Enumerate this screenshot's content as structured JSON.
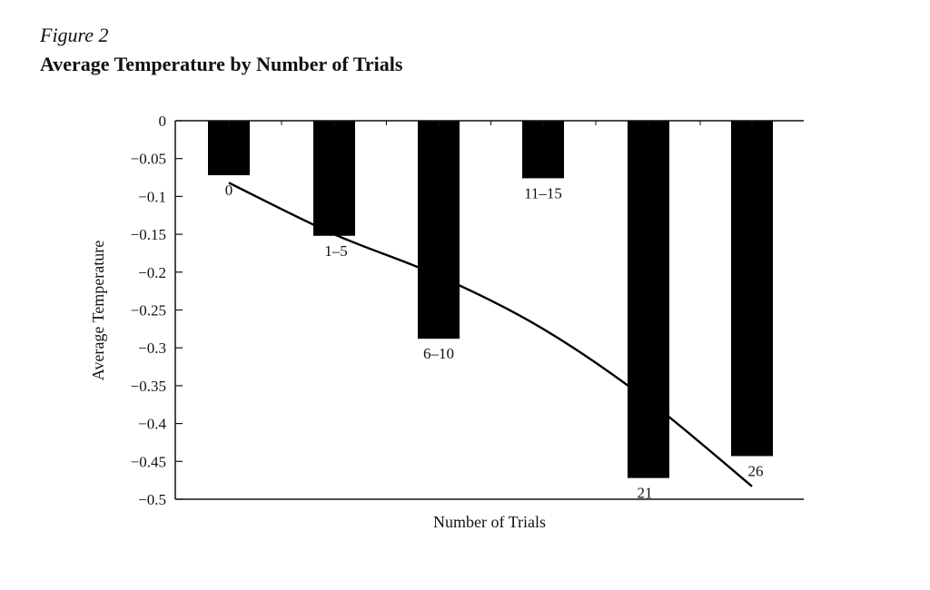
{
  "figure": {
    "label": "Figure 2",
    "title": "Average Temperature by Number of Trials"
  },
  "chart_data": {
    "type": "bar",
    "title": "Average Temperature by Number of Trials",
    "xlabel": "Number of Trials",
    "ylabel": "Average Temperature",
    "ylim": [
      -0.5,
      0
    ],
    "y_ticks": [
      0,
      -0.05,
      -0.1,
      -0.15,
      -0.2,
      -0.25,
      -0.3,
      -0.35,
      -0.4,
      -0.45,
      -0.5
    ],
    "y_tick_labels": [
      "0",
      "−0.05",
      "−0.1",
      "−0.15",
      "−0.2",
      "−0.25",
      "−0.3",
      "−0.35",
      "−0.4",
      "−0.45",
      "−0.5"
    ],
    "categories": [
      "0",
      "1–5",
      "6–10",
      "11–15",
      "21",
      "26"
    ],
    "values": [
      -0.072,
      -0.152,
      -0.288,
      -0.076,
      -0.472,
      -0.443
    ],
    "bar_color": "#000000",
    "trend_line": {
      "type": "line",
      "color": "#000000",
      "values": [
        -0.082,
        -0.15,
        -0.205,
        -0.275,
        -0.37,
        -0.483
      ]
    },
    "grid": false,
    "legend": "none"
  }
}
